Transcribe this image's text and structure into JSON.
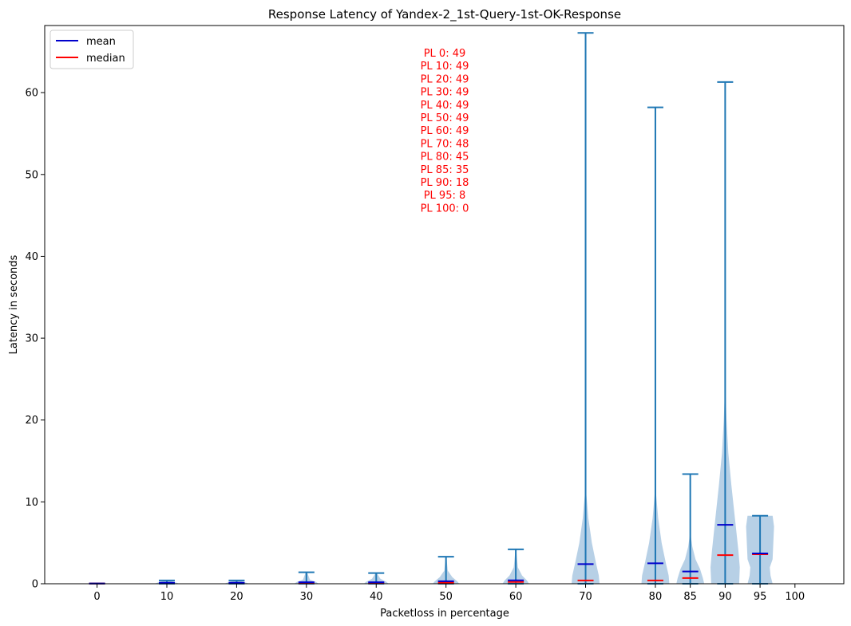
{
  "chart_data": {
    "type": "violin",
    "title": "Response Latency of Yandex-2_1st-Query-1st-OK-Response",
    "xlabel": "Packetloss in percentage",
    "ylabel": "Latency in seconds",
    "ylim": [
      0,
      68.2
    ],
    "yticks": [
      0,
      10,
      20,
      30,
      40,
      50,
      60
    ],
    "categories": [
      "0",
      "10",
      "20",
      "30",
      "40",
      "50",
      "60",
      "70",
      "80",
      "85",
      "90",
      "95",
      "100"
    ],
    "x": [
      0,
      10,
      20,
      30,
      40,
      50,
      60,
      70,
      80,
      85,
      90,
      95,
      100
    ],
    "legend": {
      "position": "top-left",
      "entries": [
        {
          "label": "mean",
          "color": "#0000cc"
        },
        {
          "label": "median",
          "color": "#ff0000"
        }
      ]
    },
    "colors": {
      "violin_fill": "#b7d0e6",
      "whisker": "#1f77b4",
      "mean": "#0000cc",
      "median": "#ff0000",
      "annotation": "#ff0000"
    },
    "series": [
      {
        "x": 0,
        "min": 0,
        "max": 0.05,
        "mean": 0.02,
        "median": 0.02,
        "width_profile": [
          [
            0,
            0.3
          ],
          [
            0.05,
            0.3
          ]
        ]
      },
      {
        "x": 10,
        "min": 0,
        "max": 0.4,
        "mean": 0.12,
        "median": 0.08,
        "width_profile": [
          [
            0,
            0.35
          ],
          [
            0.1,
            0.3
          ],
          [
            0.4,
            0.05
          ]
        ]
      },
      {
        "x": 20,
        "min": 0,
        "max": 0.4,
        "mean": 0.12,
        "median": 0.08,
        "width_profile": [
          [
            0,
            0.35
          ],
          [
            0.1,
            0.3
          ],
          [
            0.4,
            0.05
          ]
        ]
      },
      {
        "x": 30,
        "min": 0,
        "max": 1.4,
        "mean": 0.18,
        "median": 0.08,
        "width_profile": [
          [
            0,
            0.35
          ],
          [
            0.2,
            0.28
          ],
          [
            0.5,
            0.1
          ],
          [
            1.4,
            0.02
          ]
        ]
      },
      {
        "x": 40,
        "min": 0,
        "max": 1.3,
        "mean": 0.18,
        "median": 0.1,
        "width_profile": [
          [
            0,
            0.35
          ],
          [
            0.2,
            0.3
          ],
          [
            0.6,
            0.12
          ],
          [
            1.3,
            0.02
          ]
        ]
      },
      {
        "x": 50,
        "min": 0,
        "max": 3.3,
        "mean": 0.3,
        "median": 0.15,
        "width_profile": [
          [
            0,
            0.38
          ],
          [
            0.3,
            0.32
          ],
          [
            0.8,
            0.18
          ],
          [
            1.6,
            0.05
          ],
          [
            3.3,
            0.01
          ]
        ]
      },
      {
        "x": 60,
        "min": 0,
        "max": 4.2,
        "mean": 0.42,
        "median": 0.22,
        "width_profile": [
          [
            0,
            0.38
          ],
          [
            0.4,
            0.32
          ],
          [
            1.0,
            0.18
          ],
          [
            2.0,
            0.06
          ],
          [
            4.2,
            0.01
          ]
        ]
      },
      {
        "x": 70,
        "min": 0,
        "max": 67.3,
        "mean": 2.4,
        "median": 0.4,
        "width_profile": [
          [
            0,
            0.4
          ],
          [
            1,
            0.38
          ],
          [
            2.5,
            0.3
          ],
          [
            5,
            0.18
          ],
          [
            8,
            0.08
          ],
          [
            11,
            0.02
          ],
          [
            13,
            0.005
          ]
        ]
      },
      {
        "x": 80,
        "min": 0,
        "max": 58.2,
        "mean": 2.5,
        "median": 0.4,
        "width_profile": [
          [
            0,
            0.4
          ],
          [
            1,
            0.38
          ],
          [
            2.5,
            0.3
          ],
          [
            5,
            0.18
          ],
          [
            8,
            0.08
          ],
          [
            11,
            0.02
          ],
          [
            13,
            0.005
          ]
        ]
      },
      {
        "x": 85,
        "min": 0,
        "max": 13.4,
        "mean": 1.5,
        "median": 0.7,
        "width_profile": [
          [
            0,
            0.4
          ],
          [
            0.7,
            0.36
          ],
          [
            1.8,
            0.28
          ],
          [
            3,
            0.15
          ],
          [
            4.5,
            0.06
          ],
          [
            6,
            0.01
          ]
        ]
      },
      {
        "x": 90,
        "min": 0,
        "max": 61.3,
        "mean": 7.2,
        "median": 3.5,
        "width_profile": [
          [
            0,
            0.4
          ],
          [
            2,
            0.42
          ],
          [
            4,
            0.38
          ],
          [
            8,
            0.28
          ],
          [
            12,
            0.18
          ],
          [
            16,
            0.09
          ],
          [
            20,
            0.04
          ],
          [
            24,
            0.005
          ]
        ]
      },
      {
        "x": 95,
        "min": 0,
        "max": 8.3,
        "mean": 3.7,
        "median": 3.6,
        "width_profile": [
          [
            0,
            0.36
          ],
          [
            1,
            0.3
          ],
          [
            2,
            0.28
          ],
          [
            3,
            0.36
          ],
          [
            5,
            0.38
          ],
          [
            7,
            0.4
          ],
          [
            8.3,
            0.36
          ]
        ]
      },
      {
        "x": 100
      }
    ],
    "annotation_lines": [
      "PL 0: 49",
      "PL 10: 49",
      "PL 20: 49",
      "PL 30: 49",
      "PL 40: 49",
      "PL 50: 49",
      "PL 60: 49",
      "PL 70: 48",
      "PL 80: 45",
      "PL 85: 35",
      "PL 90: 18",
      "PL 95: 8",
      "PL 100: 0"
    ]
  }
}
